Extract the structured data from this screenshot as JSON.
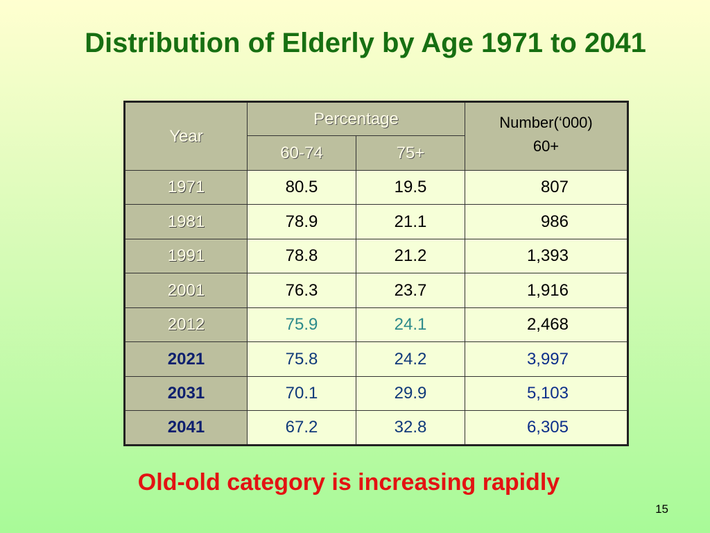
{
  "slide": {
    "title": "Distribution of Elderly by Age 1971 to 2041",
    "subtitle": "Old-old category is increasing rapidly",
    "page_number": "15"
  },
  "table": {
    "header": {
      "year": "Year",
      "percentage": "Percentage",
      "age_60_74": "60-74",
      "age_75_plus": "75+",
      "number_line1": "Number(‘000)",
      "number_line2": "60+"
    },
    "rows": [
      {
        "year": "1971",
        "p60_74": "80.5",
        "p75": "19.5",
        "number": "807"
      },
      {
        "year": "1981",
        "p60_74": "78.9",
        "p75": "21.1",
        "number": "986"
      },
      {
        "year": "1991",
        "p60_74": "78.8",
        "p75": "21.2",
        "number": "1,393"
      },
      {
        "year": "2001",
        "p60_74": "76.3",
        "p75": "23.7",
        "number": "1,916"
      },
      {
        "year": "2012",
        "p60_74": "75.9",
        "p75": "24.1",
        "number": "2,468"
      },
      {
        "year": "2021",
        "p60_74": "75.8",
        "p75": "24.2",
        "number": "3,997"
      },
      {
        "year": "2031",
        "p60_74": "70.1",
        "p75": "29.9",
        "number": "5,103"
      },
      {
        "year": "2041",
        "p60_74": "67.2",
        "p75": "32.8",
        "number": "6,305"
      }
    ]
  },
  "colors": {
    "title": "#176f12",
    "subtitle": "#e31212",
    "header_bg": "#bcbf9e",
    "cell_bg": "#f6ffd8",
    "projected_text": "#103a7a",
    "estimated_text": "#2d8b8b"
  }
}
